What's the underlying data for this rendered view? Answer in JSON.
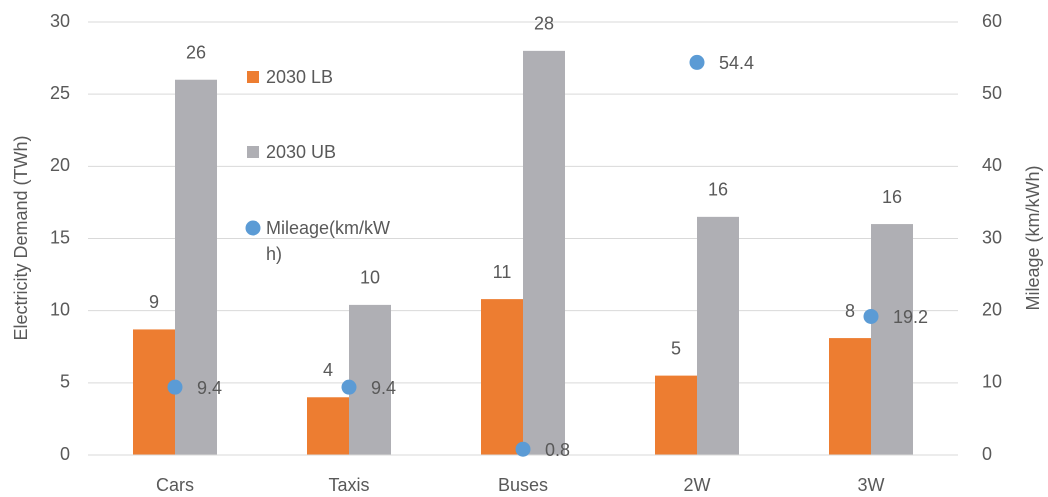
{
  "chart_data": {
    "type": "bar",
    "ylabel": "Electricity Demand (TWh)",
    "y2label": "Mileage (km/kWh)",
    "categories": [
      "Cars",
      "Taxis",
      "Buses",
      "2W",
      "3W"
    ],
    "series": [
      {
        "name": "2030 LB",
        "color": "#ed7d31",
        "type": "bar",
        "values": [
          8.7,
          4.0,
          10.8,
          5.5,
          8.1
        ],
        "value_labels": [
          "9",
          "4",
          "11",
          "5",
          "8"
        ]
      },
      {
        "name": "2030 UB",
        "color": "#afafb4",
        "type": "bar",
        "values": [
          26.0,
          10.4,
          28.0,
          16.5,
          16.0
        ],
        "value_labels": [
          "26",
          "10",
          "28",
          "16",
          "16"
        ]
      },
      {
        "name": "Mileage(km/kWh)",
        "color": "#5b9bd5",
        "type": "scatter",
        "axis": "y2",
        "values": [
          9.4,
          9.4,
          0.8,
          54.4,
          19.2
        ]
      }
    ],
    "ylim": [
      0,
      30
    ],
    "yticks": [
      0,
      5,
      10,
      15,
      20,
      25,
      30
    ],
    "y2lim": [
      0,
      60
    ],
    "y2ticks": [
      0,
      10,
      20,
      30,
      40,
      50,
      60
    ],
    "grid": true
  }
}
